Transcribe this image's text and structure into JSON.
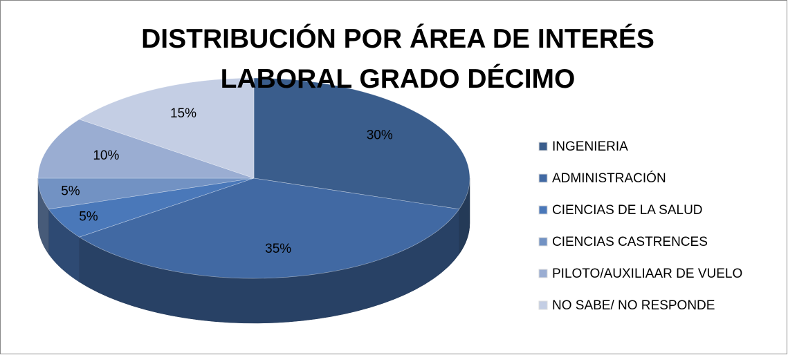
{
  "chart_data": {
    "type": "pie",
    "title": "DISTRIBUCIÓN POR ÁREA DE INTERÉS LABORAL GRADO DÉCIMO",
    "categories": [
      "INGENIERIA",
      "ADMINISTRACIÓN",
      "CIENCIAS DE LA SALUD",
      "CIENCIAS CASTRENCES",
      "PILOTO/AUXILIAAR DE VUELO",
      "NO SABE/ NO RESPONDE"
    ],
    "values": [
      30,
      35,
      5,
      5,
      10,
      15
    ],
    "value_labels": [
      "30%",
      "35%",
      "5%",
      "5%",
      "10%",
      "15%"
    ],
    "colors": [
      "#3a5d8c",
      "#4169a3",
      "#4a78b9",
      "#7292c3",
      "#9aadd2",
      "#c4cee4"
    ],
    "legend": "right"
  }
}
